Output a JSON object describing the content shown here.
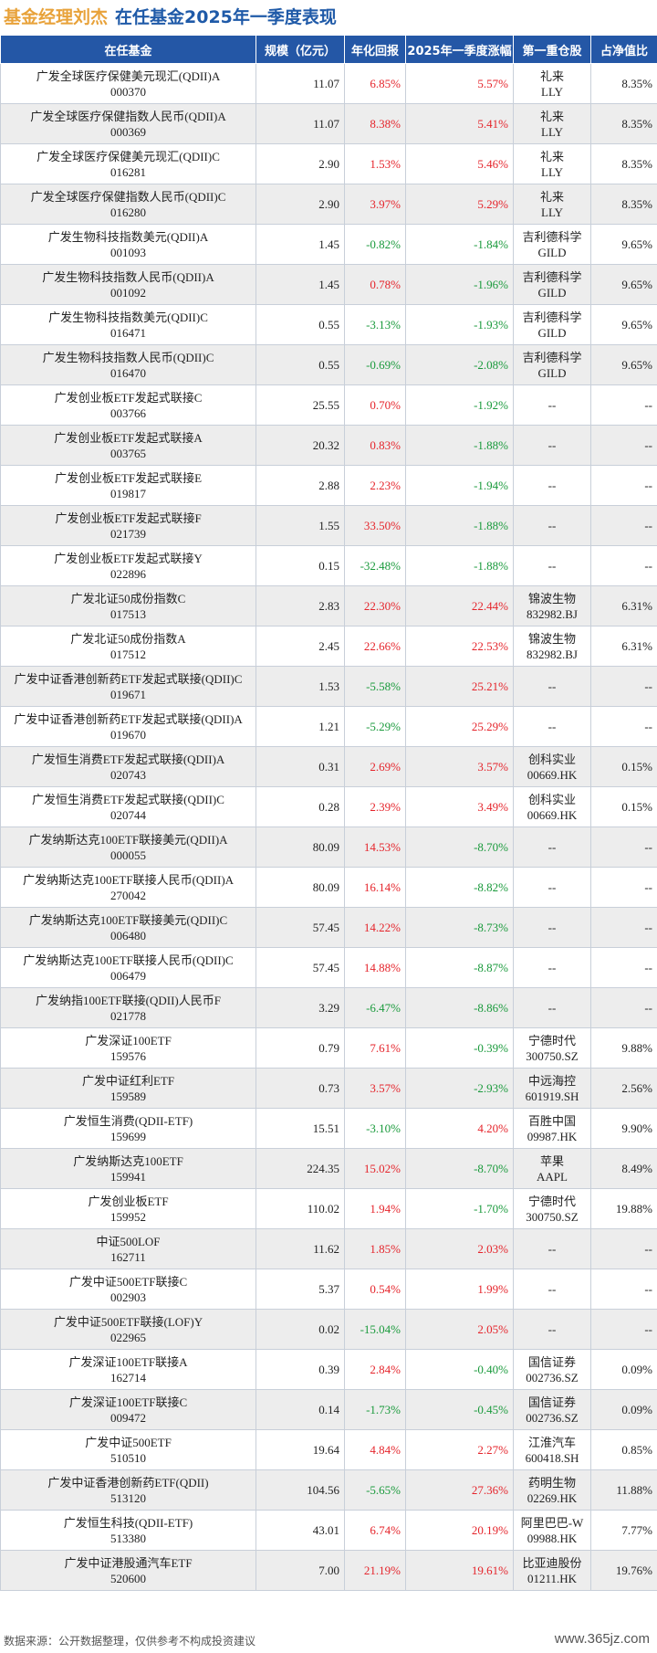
{
  "title": {
    "part1": "基金经理刘杰",
    "part2": "在任基金2025年一季度表现"
  },
  "columns": [
    "在任基金",
    "规模（亿元）",
    "年化回报",
    "2025年一季度涨幅",
    "第一重仓股",
    "占净值比"
  ],
  "rows": [
    {
      "name": "广发全球医疗保健美元现汇(QDII)A",
      "code": "000370",
      "scale": "11.07",
      "annual": "6.85%",
      "q1": "5.57%",
      "stock1": "礼来",
      "stock2": "LLY",
      "ratio": "8.35%"
    },
    {
      "name": "广发全球医疗保健指数人民币(QDII)A",
      "code": "000369",
      "scale": "11.07",
      "annual": "8.38%",
      "q1": "5.41%",
      "stock1": "礼来",
      "stock2": "LLY",
      "ratio": "8.35%"
    },
    {
      "name": "广发全球医疗保健美元现汇(QDII)C",
      "code": "016281",
      "scale": "2.90",
      "annual": "1.53%",
      "q1": "5.46%",
      "stock1": "礼来",
      "stock2": "LLY",
      "ratio": "8.35%"
    },
    {
      "name": "广发全球医疗保健指数人民币(QDII)C",
      "code": "016280",
      "scale": "2.90",
      "annual": "3.97%",
      "q1": "5.29%",
      "stock1": "礼来",
      "stock2": "LLY",
      "ratio": "8.35%"
    },
    {
      "name": "广发生物科技指数美元(QDII)A",
      "code": "001093",
      "scale": "1.45",
      "annual": "-0.82%",
      "q1": "-1.84%",
      "stock1": "吉利德科学",
      "stock2": "GILD",
      "ratio": "9.65%"
    },
    {
      "name": "广发生物科技指数人民币(QDII)A",
      "code": "001092",
      "scale": "1.45",
      "annual": "0.78%",
      "q1": "-1.96%",
      "stock1": "吉利德科学",
      "stock2": "GILD",
      "ratio": "9.65%"
    },
    {
      "name": "广发生物科技指数美元(QDII)C",
      "code": "016471",
      "scale": "0.55",
      "annual": "-3.13%",
      "q1": "-1.93%",
      "stock1": "吉利德科学",
      "stock2": "GILD",
      "ratio": "9.65%"
    },
    {
      "name": "广发生物科技指数人民币(QDII)C",
      "code": "016470",
      "scale": "0.55",
      "annual": "-0.69%",
      "q1": "-2.08%",
      "stock1": "吉利德科学",
      "stock2": "GILD",
      "ratio": "9.65%"
    },
    {
      "name": "广发创业板ETF发起式联接C",
      "code": "003766",
      "scale": "25.55",
      "annual": "0.70%",
      "q1": "-1.92%",
      "stock1": "--",
      "stock2": "",
      "ratio": "--"
    },
    {
      "name": "广发创业板ETF发起式联接A",
      "code": "003765",
      "scale": "20.32",
      "annual": "0.83%",
      "q1": "-1.88%",
      "stock1": "--",
      "stock2": "",
      "ratio": "--"
    },
    {
      "name": "广发创业板ETF发起式联接E",
      "code": "019817",
      "scale": "2.88",
      "annual": "2.23%",
      "q1": "-1.94%",
      "stock1": "--",
      "stock2": "",
      "ratio": "--"
    },
    {
      "name": "广发创业板ETF发起式联接F",
      "code": "021739",
      "scale": "1.55",
      "annual": "33.50%",
      "q1": "-1.88%",
      "stock1": "--",
      "stock2": "",
      "ratio": "--"
    },
    {
      "name": "广发创业板ETF发起式联接Y",
      "code": "022896",
      "scale": "0.15",
      "annual": "-32.48%",
      "q1": "-1.88%",
      "stock1": "--",
      "stock2": "",
      "ratio": "--"
    },
    {
      "name": "广发北证50成份指数C",
      "code": "017513",
      "scale": "2.83",
      "annual": "22.30%",
      "q1": "22.44%",
      "stock1": "锦波生物",
      "stock2": "832982.BJ",
      "ratio": "6.31%"
    },
    {
      "name": "广发北证50成份指数A",
      "code": "017512",
      "scale": "2.45",
      "annual": "22.66%",
      "q1": "22.53%",
      "stock1": "锦波生物",
      "stock2": "832982.BJ",
      "ratio": "6.31%"
    },
    {
      "name": "广发中证香港创新药ETF发起式联接(QDII)C",
      "code": "019671",
      "scale": "1.53",
      "annual": "-5.58%",
      "q1": "25.21%",
      "stock1": "--",
      "stock2": "",
      "ratio": "--"
    },
    {
      "name": "广发中证香港创新药ETF发起式联接(QDII)A",
      "code": "019670",
      "scale": "1.21",
      "annual": "-5.29%",
      "q1": "25.29%",
      "stock1": "--",
      "stock2": "",
      "ratio": "--"
    },
    {
      "name": "广发恒生消费ETF发起式联接(QDII)A",
      "code": "020743",
      "scale": "0.31",
      "annual": "2.69%",
      "q1": "3.57%",
      "stock1": "创科实业",
      "stock2": "00669.HK",
      "ratio": "0.15%"
    },
    {
      "name": "广发恒生消费ETF发起式联接(QDII)C",
      "code": "020744",
      "scale": "0.28",
      "annual": "2.39%",
      "q1": "3.49%",
      "stock1": "创科实业",
      "stock2": "00669.HK",
      "ratio": "0.15%"
    },
    {
      "name": "广发纳斯达克100ETF联接美元(QDII)A",
      "code": "000055",
      "scale": "80.09",
      "annual": "14.53%",
      "q1": "-8.70%",
      "stock1": "--",
      "stock2": "",
      "ratio": "--"
    },
    {
      "name": "广发纳斯达克100ETF联接人民币(QDII)A",
      "code": "270042",
      "scale": "80.09",
      "annual": "16.14%",
      "q1": "-8.82%",
      "stock1": "--",
      "stock2": "",
      "ratio": "--"
    },
    {
      "name": "广发纳斯达克100ETF联接美元(QDII)C",
      "code": "006480",
      "scale": "57.45",
      "annual": "14.22%",
      "q1": "-8.73%",
      "stock1": "--",
      "stock2": "",
      "ratio": "--"
    },
    {
      "name": "广发纳斯达克100ETF联接人民币(QDII)C",
      "code": "006479",
      "scale": "57.45",
      "annual": "14.88%",
      "q1": "-8.87%",
      "stock1": "--",
      "stock2": "",
      "ratio": "--"
    },
    {
      "name": "广发纳指100ETF联接(QDII)人民币F",
      "code": "021778",
      "scale": "3.29",
      "annual": "-6.47%",
      "q1": "-8.86%",
      "stock1": "--",
      "stock2": "",
      "ratio": "--"
    },
    {
      "name": "广发深证100ETF",
      "code": "159576",
      "scale": "0.79",
      "annual": "7.61%",
      "q1": "-0.39%",
      "stock1": "宁德时代",
      "stock2": "300750.SZ",
      "ratio": "9.88%"
    },
    {
      "name": "广发中证红利ETF",
      "code": "159589",
      "scale": "0.73",
      "annual": "3.57%",
      "q1": "-2.93%",
      "stock1": "中远海控",
      "stock2": "601919.SH",
      "ratio": "2.56%"
    },
    {
      "name": "广发恒生消费(QDII-ETF)",
      "code": "159699",
      "scale": "15.51",
      "annual": "-3.10%",
      "q1": "4.20%",
      "stock1": "百胜中国",
      "stock2": "09987.HK",
      "ratio": "9.90%"
    },
    {
      "name": "广发纳斯达克100ETF",
      "code": "159941",
      "scale": "224.35",
      "annual": "15.02%",
      "q1": "-8.70%",
      "stock1": "苹果",
      "stock2": "AAPL",
      "ratio": "8.49%"
    },
    {
      "name": "广发创业板ETF",
      "code": "159952",
      "scale": "110.02",
      "annual": "1.94%",
      "q1": "-1.70%",
      "stock1": "宁德时代",
      "stock2": "300750.SZ",
      "ratio": "19.88%"
    },
    {
      "name": "中证500LOF",
      "code": "162711",
      "scale": "11.62",
      "annual": "1.85%",
      "q1": "2.03%",
      "stock1": "--",
      "stock2": "",
      "ratio": "--"
    },
    {
      "name": "广发中证500ETF联接C",
      "code": "002903",
      "scale": "5.37",
      "annual": "0.54%",
      "q1": "1.99%",
      "stock1": "--",
      "stock2": "",
      "ratio": "--"
    },
    {
      "name": "广发中证500ETF联接(LOF)Y",
      "code": "022965",
      "scale": "0.02",
      "annual": "-15.04%",
      "q1": "2.05%",
      "stock1": "--",
      "stock2": "",
      "ratio": "--"
    },
    {
      "name": "广发深证100ETF联接A",
      "code": "162714",
      "scale": "0.39",
      "annual": "2.84%",
      "q1": "-0.40%",
      "stock1": "国信证券",
      "stock2": "002736.SZ",
      "ratio": "0.09%"
    },
    {
      "name": "广发深证100ETF联接C",
      "code": "009472",
      "scale": "0.14",
      "annual": "-1.73%",
      "q1": "-0.45%",
      "stock1": "国信证券",
      "stock2": "002736.SZ",
      "ratio": "0.09%"
    },
    {
      "name": "广发中证500ETF",
      "code": "510510",
      "scale": "19.64",
      "annual": "4.84%",
      "q1": "2.27%",
      "stock1": "江淮汽车",
      "stock2": "600418.SH",
      "ratio": "0.85%"
    },
    {
      "name": "广发中证香港创新药ETF(QDII)",
      "code": "513120",
      "scale": "104.56",
      "annual": "-5.65%",
      "q1": "27.36%",
      "stock1": "药明生物",
      "stock2": "02269.HK",
      "ratio": "11.88%"
    },
    {
      "name": "广发恒生科技(QDII-ETF)",
      "code": "513380",
      "scale": "43.01",
      "annual": "6.74%",
      "q1": "20.19%",
      "stock1": "阿里巴巴-W",
      "stock2": "09988.HK",
      "ratio": "7.77%"
    },
    {
      "name": "广发中证港股通汽车ETF",
      "code": "520600",
      "scale": "7.00",
      "annual": "21.19%",
      "q1": "19.61%",
      "stock1": "比亚迪股份",
      "stock2": "01211.HK",
      "ratio": "19.76%"
    }
  ],
  "colors": {
    "header_bg": "#2457a6",
    "positive": "#e5242b",
    "negative": "#1a9a3c",
    "title_accent": "#e8a23a",
    "title_main": "#1f5aa8"
  },
  "footer": {
    "source": "数据来源：公开数据整理，仅供参考不构成投资建议",
    "site": "www.365jz.com"
  }
}
